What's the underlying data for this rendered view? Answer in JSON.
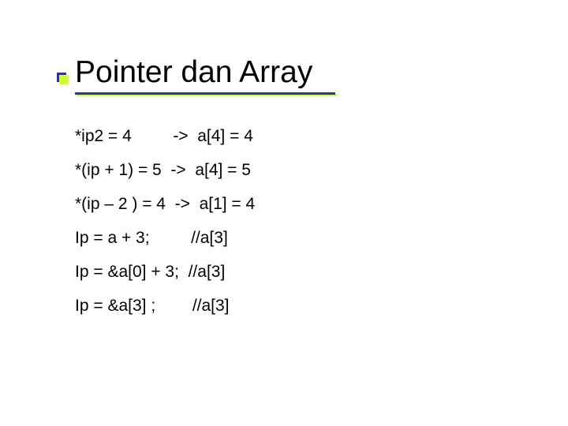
{
  "title": {
    "text": "Pointer dan Array",
    "fontsize": 39,
    "color": "#000000",
    "underline_color": "#333399",
    "underline_shadow_color": "#ccff33",
    "underline_width": 330,
    "bullet_primary": "#333399",
    "bullet_secondary": "#ccff33"
  },
  "lines": [
    {
      "text": "*ip2 = 4         ->  a[4] = 4"
    },
    {
      "text": "*(ip + 1) = 5  ->  a[4] = 5"
    },
    {
      "text": "*(ip – 2 ) = 4  ->  a[1] = 4"
    },
    {
      "text": "Ip = a + 3;         //a[3]"
    },
    {
      "text": "Ip = &a[0] + 3;  //a[3]"
    },
    {
      "text": "Ip = &a[3] ;        //a[3]"
    }
  ],
  "style": {
    "background_color": "#ffffff",
    "text_color": "#000000",
    "code_fontsize": 21,
    "line_spacing": 22,
    "font_family": "Verdana, Geneva, sans-serif"
  }
}
